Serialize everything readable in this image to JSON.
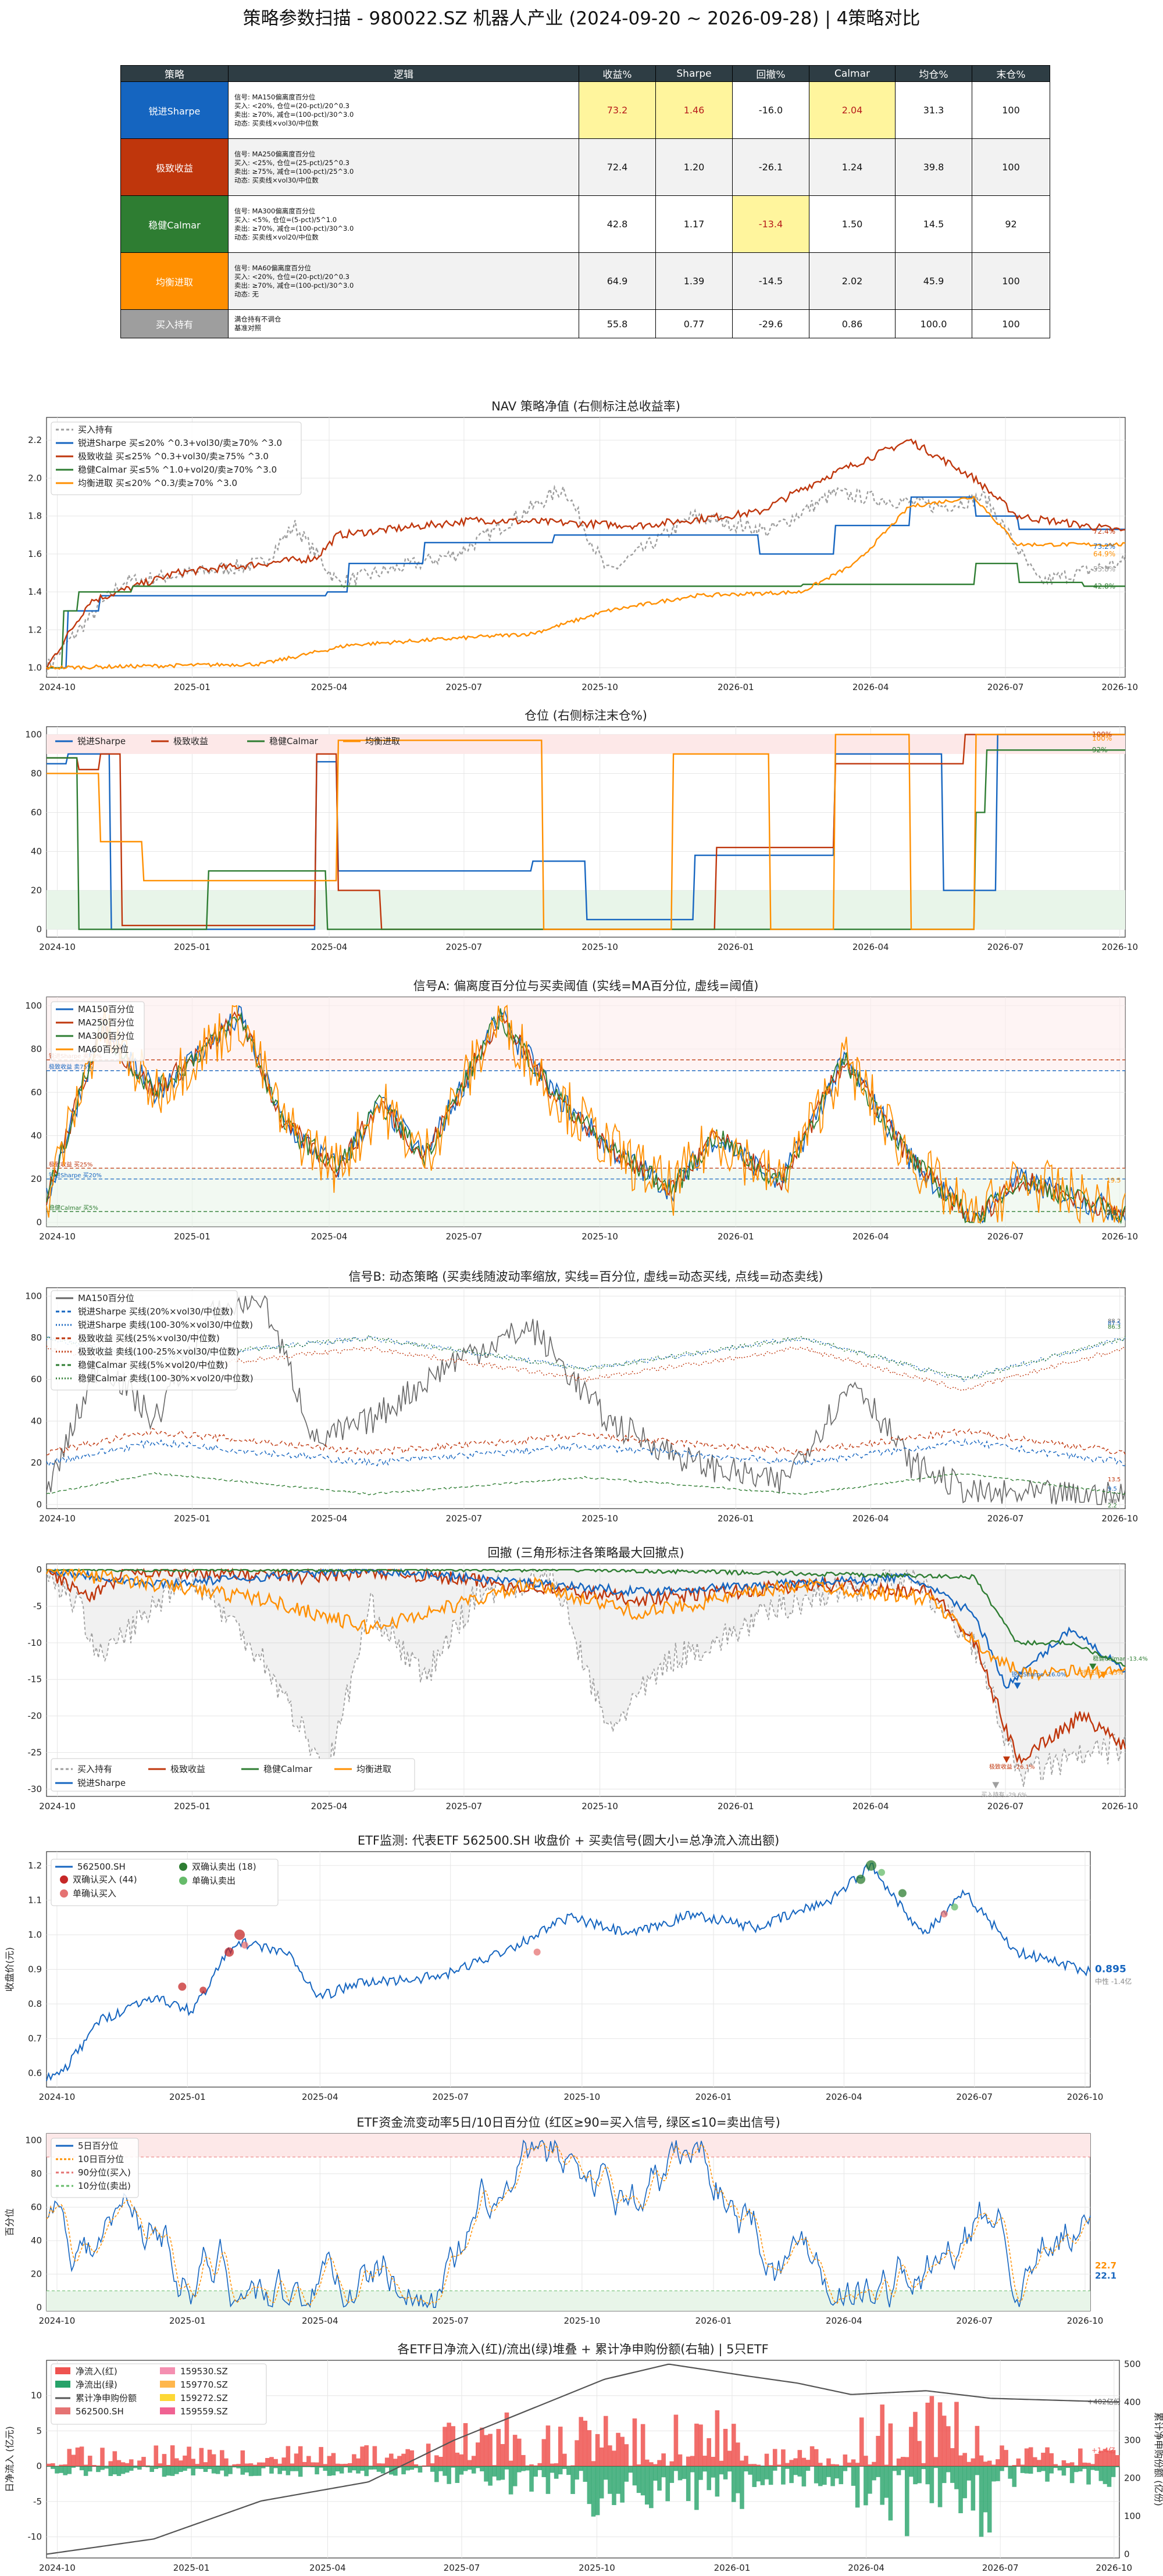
{
  "title": "策略参数扫描 - 980022.SZ 机器人产业 (2024-09-20 ~ 2026-09-28) | 4策略对比",
  "table": {
    "headers": [
      "策略",
      "逻辑",
      "收益%",
      "Sharpe",
      "回撤%",
      "Calmar",
      "均仓%",
      "末仓%"
    ],
    "rows": [
      {
        "name": "锐进Sharpe",
        "color": "#1565c0",
        "logic": [
          "信号: MA150偏离度百分位",
          "买入: <20%, 仓位=(20-pct)/20^0.3",
          "卖出: ≥70%, 减仓=(100-pct)/30^3.0",
          "动态: 买卖线×vol30/中位数"
        ],
        "values": [
          "73.2",
          "1.46",
          "-16.0",
          "2.04",
          "31.3",
          "100"
        ],
        "hl": [
          true,
          true,
          false,
          true,
          false,
          false
        ]
      },
      {
        "name": "极致收益",
        "color": "#bf360c",
        "logic": [
          "信号: MA250偏离度百分位",
          "买入: <25%, 仓位=(25-pct)/25^0.3",
          "卖出: ≥75%, 减仓=(100-pct)/25^3.0",
          "动态: 买卖线×vol30/中位数"
        ],
        "values": [
          "72.4",
          "1.20",
          "-26.1",
          "1.24",
          "39.8",
          "100"
        ],
        "hl": [
          false,
          false,
          false,
          false,
          false,
          false
        ]
      },
      {
        "name": "稳健Calmar",
        "color": "#2e7d32",
        "logic": [
          "信号: MA300偏离度百分位",
          "买入: <5%, 仓位=(5-pct)/5^1.0",
          "卖出: ≥70%, 减仓=(100-pct)/30^3.0",
          "动态: 买卖线×vol20/中位数"
        ],
        "values": [
          "42.8",
          "1.17",
          "-13.4",
          "1.50",
          "14.5",
          "92"
        ],
        "hl": [
          false,
          false,
          true,
          false,
          false,
          false
        ]
      },
      {
        "name": "均衡进取",
        "color": "#ff8f00",
        "logic": [
          "信号: MA60偏离度百分位",
          "买入: <20%, 仓位=(20-pct)/20^0.3",
          "卖出: ≥70%, 减仓=(100-pct)/30^3.0",
          "动态: 无"
        ],
        "values": [
          "64.9",
          "1.39",
          "-14.5",
          "2.02",
          "45.9",
          "100"
        ],
        "hl": [
          false,
          false,
          false,
          false,
          false,
          false
        ]
      },
      {
        "name": "买入持有",
        "color": "#9e9e9e",
        "logic": [
          "满仓持有不调仓",
          "基准对照"
        ],
        "values": [
          "55.8",
          "0.77",
          "-29.6",
          "0.86",
          "100.0",
          "100"
        ],
        "hl": [
          false,
          false,
          false,
          false,
          false,
          false
        ]
      }
    ]
  },
  "colors": {
    "sharpe": "#1565c0",
    "ret": "#bf360c",
    "calmar": "#2e7d32",
    "bal": "#ff8f00",
    "hold": "#9e9e9e",
    "hl": "#fff59d",
    "grid": "#e6e6e6"
  },
  "x_ticks": [
    "2024-10",
    "2025-01",
    "2025-04",
    "2025-07",
    "2025-10",
    "2026-01",
    "2026-04",
    "2026-07",
    "2026-10"
  ],
  "panels": {
    "nav": {
      "title": "NAV 策略净值 (右侧标注总收益率)",
      "y_ticks": [
        "1.0",
        "1.2",
        "1.4",
        "1.6",
        "1.8",
        "2.0",
        "2.2"
      ],
      "legend": [
        "买入持有",
        "锐进Sharpe  买≤20% ^0.3+vol30/卖≥70% ^3.0",
        "极致收益  买≤25% ^0.3+vol30/卖≥75% ^3.0",
        "稳健Calmar  买≤5% ^1.0+vol20/卖≥70% ^3.0",
        "均衡进取  买≤20% ^0.3/卖≥70% ^3.0"
      ],
      "end_labels": [
        "72.4%",
        "73.2%",
        "64.9%",
        "55.8%",
        "42.8%"
      ]
    },
    "pos": {
      "title": "仓位 (右侧标注末仓%)",
      "y_ticks": [
        "0",
        "20",
        "40",
        "60",
        "80",
        "100"
      ],
      "legend": [
        "锐进Sharpe",
        "极致收益",
        "稳健Calmar",
        "均衡进取"
      ],
      "end_labels": [
        "100%",
        "100%",
        "92%"
      ]
    },
    "sigA": {
      "title": "信号A: 偏离度百分位与买卖阈值 (实线=MA百分位, 虚线=阈值)",
      "y_ticks": [
        "0",
        "20",
        "40",
        "60",
        "80",
        "100"
      ],
      "legend": [
        "MA150百分位",
        "MA250百分位",
        "MA300百分位",
        "MA60百分位"
      ],
      "threshold_labels": [
        "锐进Sharpe 卖70%",
        "极致收益 卖75%",
        "极致收益 买25%",
        "锐进Sharpe 买20%",
        "稳健Calmar 买5%"
      ],
      "end_labels": [
        "19.5",
        "3.8",
        "3.8",
        "2.9"
      ]
    },
    "sigB": {
      "title": "信号B: 动态策略 (买卖线随波动率缩放, 实线=百分位, 虚线=动态买线, 点线=动态卖线)",
      "y_ticks": [
        "0",
        "20",
        "40",
        "60",
        "80",
        "100"
      ],
      "legend": [
        "MA150百分位",
        "锐进Sharpe 买线(20%×vol30/中位数)",
        "锐进Sharpe 卖线(100-30%×vol30/中位数)",
        "极致收益 买线(25%×vol30/中位数)",
        "极致收益 卖线(100-25%×vol30/中位数)",
        "稳健Calmar 买线(5%×vol20/中位数)",
        "稳健Calmar 卖线(100-30%×vol20/中位数)"
      ],
      "end_labels": [
        "88.2",
        "87.5",
        "86.3",
        "13.5",
        "9.5",
        "3.8",
        "2.2"
      ]
    },
    "dd": {
      "title": "回撤 (三角形标注各策略最大回撤点)",
      "y_ticks": [
        "0",
        "-5",
        "-10",
        "-15",
        "-20",
        "-25",
        "-30"
      ],
      "legend": [
        "买入持有",
        "锐进Sharpe",
        "极致收益",
        "稳健Calmar",
        "均衡进取"
      ],
      "annotations": [
        "稳健Calmar -13.4%",
        "锐进Sharpe -16.0%",
        "均衡进取 -14.5%",
        "极致收益 -26.1%",
        "买入持有 -29.6%"
      ]
    },
    "etf": {
      "title": "ETF监测: 代表ETF 562500.SH 收盘价 + 买卖信号(圆大小=总净流入流出额)",
      "ylabel": "收盘价(元)",
      "y_ticks": [
        "0.6",
        "0.7",
        "0.8",
        "0.9",
        "1.0",
        "1.1",
        "1.2"
      ],
      "legend": [
        "562500.SH",
        "双确认买入 (44)",
        "单确认买入",
        "双确认卖出 (18)",
        "单确认卖出"
      ],
      "last_price": "0.895",
      "note": "中性 -1.4亿"
    },
    "flow": {
      "title": "ETF资金流变动率5日/10日百分位 (红区≥90=买入信号, 绿区≤10=卖出信号)",
      "ylabel": "百分位",
      "y_ticks": [
        "0",
        "20",
        "40",
        "60",
        "80",
        "100"
      ],
      "legend": [
        "5日百分位",
        "10日百分位",
        "90分位(买入)",
        "10分位(卖出)"
      ],
      "end_labels": [
        "22.7",
        "22.1"
      ]
    },
    "etfs": {
      "title": "各ETF日净流入(红)/流出(绿)堆叠 + 累计净申购份额(右轴) | 5只ETF",
      "ylabel": "日净流入 (亿元)",
      "ylabel_r": "累计净申购份额 (亿份)",
      "y_ticks": [
        "-10",
        "-5",
        "0",
        "5",
        "10"
      ],
      "y_ticks_r": [
        "0",
        "100",
        "200",
        "300",
        "400",
        "500"
      ],
      "legend": [
        "净流入(红)",
        "净流出(绿)",
        "累计净申购份额",
        "562500.SH",
        "159530.SZ",
        "159770.SZ",
        "159272.SZ",
        "159559.SZ"
      ],
      "end_labels": [
        "+402亿份",
        "+1.4亿"
      ]
    }
  }
}
